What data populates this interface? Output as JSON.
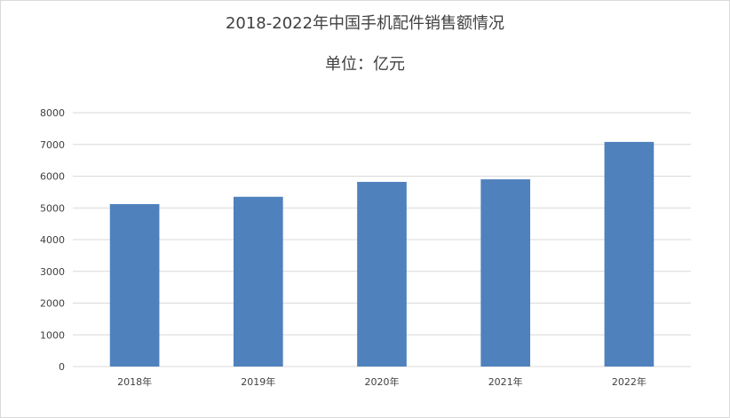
{
  "chart_data": {
    "type": "bar",
    "title": "2018-2022年中国手机配件销售额情况",
    "subtitle": "单位：亿元",
    "categories": [
      "2018年",
      "2019年",
      "2020年",
      "2021年",
      "2022年"
    ],
    "values": [
      5120,
      5350,
      5820,
      5900,
      7080
    ],
    "ylim": [
      0,
      8000
    ],
    "yticks": [
      0,
      1000,
      2000,
      3000,
      4000,
      5000,
      6000,
      7000,
      8000
    ],
    "grid": true,
    "legend": "none",
    "bar_color": "#4f81bd",
    "grid_color": "#d9d9d9",
    "xlabel": "",
    "ylabel": ""
  }
}
